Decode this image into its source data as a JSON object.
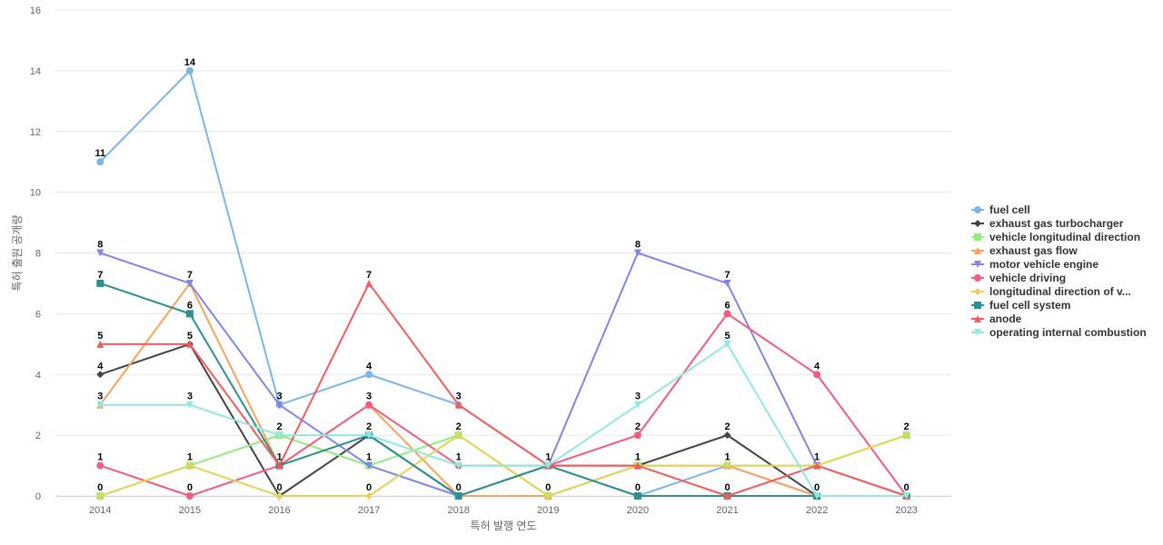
{
  "chart_data": {
    "type": "line",
    "title": "",
    "xlabel": "특허 발행 연도",
    "ylabel": "특허 출원 공개량",
    "categories": [
      "2014",
      "2015",
      "2016",
      "2017",
      "2018",
      "2019",
      "2020",
      "2021",
      "2022",
      "2023"
    ],
    "ylim": [
      0,
      16
    ],
    "yticks": [
      0,
      2,
      4,
      6,
      8,
      10,
      12,
      14,
      16
    ],
    "grid": true,
    "legend_position": "right",
    "series": [
      {
        "name": "fuel cell",
        "color": "#7cb5ec",
        "marker": "circle",
        "values": [
          11,
          14,
          3,
          4,
          3,
          1,
          0,
          1,
          0,
          0
        ]
      },
      {
        "name": "exhaust gas turbocharger",
        "color": "#434348",
        "marker": "diamond",
        "values": [
          4,
          5,
          0,
          2,
          0,
          1,
          1,
          2,
          0,
          0
        ]
      },
      {
        "name": "vehicle longitudinal direction",
        "color": "#90ed7d",
        "marker": "square",
        "values": [
          0,
          1,
          2,
          1,
          2,
          0,
          1,
          1,
          1,
          2
        ]
      },
      {
        "name": "exhaust gas flow",
        "color": "#f7a35c",
        "marker": "triangle",
        "values": [
          3,
          7,
          1,
          3,
          0,
          0,
          1,
          1,
          0,
          0
        ]
      },
      {
        "name": "motor vehicle engine",
        "color": "#8085e9",
        "marker": "triangle-down",
        "values": [
          8,
          7,
          3,
          1,
          0,
          1,
          8,
          7,
          1,
          0
        ]
      },
      {
        "name": "vehicle driving",
        "color": "#f15c80",
        "marker": "circle",
        "values": [
          1,
          0,
          1,
          3,
          1,
          1,
          2,
          6,
          4,
          0
        ]
      },
      {
        "name": "longitudinal direction of v...",
        "color": "#e4d354",
        "marker": "diamond",
        "values": [
          0,
          1,
          0,
          0,
          2,
          0,
          1,
          1,
          1,
          2
        ]
      },
      {
        "name": "fuel cell system",
        "color": "#2b908f",
        "marker": "square",
        "values": [
          7,
          6,
          1,
          2,
          0,
          1,
          0,
          0,
          0,
          0
        ]
      },
      {
        "name": "anode",
        "color": "#f45b5b",
        "marker": "triangle",
        "values": [
          5,
          5,
          1,
          7,
          3,
          1,
          1,
          0,
          1,
          0
        ]
      },
      {
        "name": "operating internal combustion",
        "color": "#91e8e1",
        "marker": "triangle-down",
        "values": [
          3,
          3,
          2,
          2,
          1,
          1,
          3,
          5,
          0,
          0
        ]
      }
    ],
    "data_labels": [
      {
        "x": "2014",
        "series": "fuel cell"
      },
      {
        "x": "2014",
        "series": "motor vehicle engine"
      },
      {
        "x": "2014",
        "series": "fuel cell system"
      },
      {
        "x": "2014",
        "series": "anode"
      },
      {
        "x": "2014",
        "series": "exhaust gas turbocharger"
      },
      {
        "x": "2014",
        "series": "operating internal combustion"
      },
      {
        "x": "2014",
        "series": "vehicle driving"
      },
      {
        "x": "2014",
        "series": "vehicle longitudinal direction"
      },
      {
        "x": "2015",
        "series": "fuel cell"
      },
      {
        "x": "2015",
        "series": "motor vehicle engine"
      },
      {
        "x": "2015",
        "series": "fuel cell system"
      },
      {
        "x": "2015",
        "series": "anode"
      },
      {
        "x": "2015",
        "series": "operating internal combustion"
      },
      {
        "x": "2015",
        "series": "vehicle longitudinal direction"
      },
      {
        "x": "2015",
        "series": "vehicle driving"
      },
      {
        "x": "2016",
        "series": "fuel cell"
      },
      {
        "x": "2016",
        "series": "vehicle longitudinal direction"
      },
      {
        "x": "2016",
        "series": "anode"
      },
      {
        "x": "2016",
        "series": "exhaust gas turbocharger"
      },
      {
        "x": "2017",
        "series": "anode"
      },
      {
        "x": "2017",
        "series": "fuel cell"
      },
      {
        "x": "2017",
        "series": "vehicle driving"
      },
      {
        "x": "2017",
        "series": "fuel cell system"
      },
      {
        "x": "2017",
        "series": "motor vehicle engine"
      },
      {
        "x": "2017",
        "series": "longitudinal direction of v..."
      },
      {
        "x": "2018",
        "series": "fuel cell"
      },
      {
        "x": "2018",
        "series": "vehicle longitudinal direction"
      },
      {
        "x": "2018",
        "series": "vehicle driving"
      },
      {
        "x": "2018",
        "series": "fuel cell system"
      },
      {
        "x": "2019",
        "series": "fuel cell"
      },
      {
        "x": "2019",
        "series": "vehicle longitudinal direction"
      },
      {
        "x": "2020",
        "series": "motor vehicle engine"
      },
      {
        "x": "2020",
        "series": "operating internal combustion"
      },
      {
        "x": "2020",
        "series": "vehicle driving"
      },
      {
        "x": "2020",
        "series": "exhaust gas turbocharger"
      },
      {
        "x": "2020",
        "series": "fuel cell system"
      },
      {
        "x": "2021",
        "series": "motor vehicle engine"
      },
      {
        "x": "2021",
        "series": "vehicle driving"
      },
      {
        "x": "2021",
        "series": "operating internal combustion"
      },
      {
        "x": "2021",
        "series": "exhaust gas turbocharger"
      },
      {
        "x": "2021",
        "series": "fuel cell"
      },
      {
        "x": "2021",
        "series": "anode"
      },
      {
        "x": "2022",
        "series": "vehicle driving"
      },
      {
        "x": "2022",
        "series": "motor vehicle engine"
      },
      {
        "x": "2022",
        "series": "fuel cell"
      },
      {
        "x": "2023",
        "series": "longitudinal direction of v..."
      },
      {
        "x": "2023",
        "series": "fuel cell"
      }
    ]
  }
}
